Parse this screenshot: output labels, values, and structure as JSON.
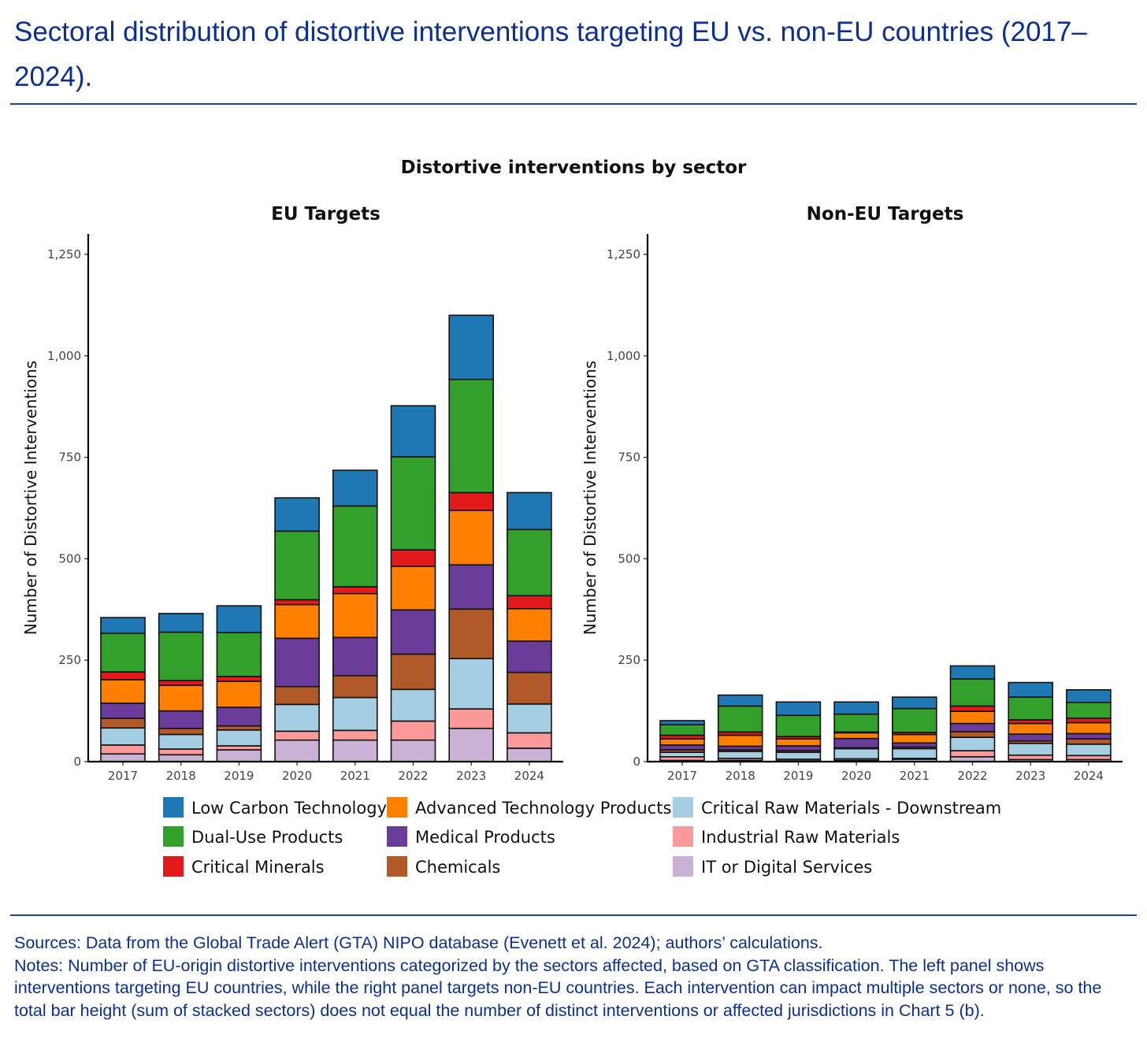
{
  "header": {
    "title": "Sectoral distribution of distortive interventions targeting EU vs. non-EU countries (2017–2024)."
  },
  "footer": {
    "sources": "Sources: Data from the Global Trade Alert (GTA) NIPO database (Evenett et al. 2024); authors’ calculations.",
    "notes": "Notes: Number of EU-origin distortive interventions categorized by the sectors affected, based on GTA classification. The left panel shows interventions targeting EU countries, while the right panel targets non-EU countries. Each intervention can impact multiple sectors or none, so the total bar height (sum of stacked sectors) does not equal the number of distinct interventions or affected jurisdictions in Chart 5 (b)."
  },
  "chart_data": {
    "type": "bar",
    "stacked": true,
    "title": "Distortive interventions by sector",
    "categories": [
      "2017",
      "2018",
      "2019",
      "2020",
      "2021",
      "2022",
      "2023",
      "2024"
    ],
    "ylabel": "Number of Distortive Interventions",
    "ylim": [
      0,
      1300
    ],
    "yticks": [
      0,
      250,
      500,
      750,
      1000,
      1250
    ],
    "ytick_labels": [
      "0",
      "250",
      "500",
      "750",
      "1,000",
      "1,250"
    ],
    "grid": false,
    "legend_position": "bottom",
    "legend": [
      {
        "name": "Low Carbon Technology",
        "color": "#1f78b4"
      },
      {
        "name": "Dual-Use Products",
        "color": "#33a02c"
      },
      {
        "name": "Critical Minerals",
        "color": "#e31a1c"
      },
      {
        "name": "Advanced Technology Products",
        "color": "#ff7f00"
      },
      {
        "name": "Medical Products",
        "color": "#6a3d9a"
      },
      {
        "name": "Chemicals",
        "color": "#b15928"
      },
      {
        "name": "Critical Raw Materials - Downstream",
        "color": "#a6cee3"
      },
      {
        "name": "Industrial Raw Materials",
        "color": "#fb9a99"
      },
      {
        "name": "IT or Digital Services",
        "color": "#cab2d6"
      }
    ],
    "stack_order_bottom_to_top": [
      "IT or Digital Services",
      "Industrial Raw Materials",
      "Critical Raw Materials - Downstream",
      "Chemicals",
      "Medical Products",
      "Advanced Technology Products",
      "Critical Minerals",
      "Dual-Use Products",
      "Low Carbon Technology"
    ],
    "panels": [
      {
        "title": "EU Targets",
        "series": [
          {
            "name": "IT or Digital Services",
            "values": [
              19,
              17,
              29,
              53,
              53,
              53,
              82,
              33
            ]
          },
          {
            "name": "Industrial Raw Materials",
            "values": [
              22,
              14,
              10,
              22,
              24,
              47,
              48,
              38
            ]
          },
          {
            "name": "Critical Raw Materials - Downstream",
            "values": [
              42,
              36,
              39,
              66,
              81,
              78,
              124,
              71
            ]
          },
          {
            "name": "Chemicals",
            "values": [
              24,
              15,
              10,
              44,
              54,
              87,
              122,
              78
            ]
          },
          {
            "name": "Medical Products",
            "values": [
              37,
              43,
              46,
              119,
              94,
              109,
              109,
              77
            ]
          },
          {
            "name": "Advanced Technology Products",
            "values": [
              58,
              63,
              64,
              83,
              108,
              107,
              134,
              80
            ]
          },
          {
            "name": "Critical Minerals",
            "values": [
              19,
              12,
              12,
              12,
              17,
              41,
              44,
              32
            ]
          },
          {
            "name": "Dual-Use Products",
            "values": [
              95,
              119,
              108,
              169,
              199,
              229,
              279,
              163
            ]
          },
          {
            "name": "Low Carbon Technology",
            "values": [
              39,
              46,
              66,
              82,
              88,
              126,
              158,
              91
            ]
          }
        ]
      },
      {
        "title": "Non-EU Targets",
        "series": [
          {
            "name": "IT or Digital Services",
            "values": [
              3,
              3,
              2,
              3,
              6,
              12,
              5,
              5
            ]
          },
          {
            "name": "Industrial Raw Materials",
            "values": [
              9,
              5,
              4,
              4,
              2,
              15,
              11,
              10
            ]
          },
          {
            "name": "Critical Raw Materials - Downstream",
            "values": [
              11,
              17,
              17,
              25,
              24,
              33,
              29,
              28
            ]
          },
          {
            "name": "Chemicals",
            "values": [
              6,
              4,
              4,
              2,
              4,
              14,
              6,
              13
            ]
          },
          {
            "name": "Medical Products",
            "values": [
              12,
              9,
              12,
              23,
              10,
              20,
              17,
              13
            ]
          },
          {
            "name": "Advanced Technology Products",
            "values": [
              15,
              27,
              17,
              14,
              21,
              30,
              26,
              27
            ]
          },
          {
            "name": "Critical Minerals",
            "values": [
              9,
              8,
              6,
              2,
              5,
              13,
              9,
              11
            ]
          },
          {
            "name": "Dual-Use Products",
            "values": [
              26,
              64,
              52,
              44,
              59,
              67,
              56,
              39
            ]
          },
          {
            "name": "Low Carbon Technology",
            "values": [
              10,
              27,
              33,
              30,
              28,
              32,
              36,
              31
            ]
          }
        ]
      }
    ]
  }
}
